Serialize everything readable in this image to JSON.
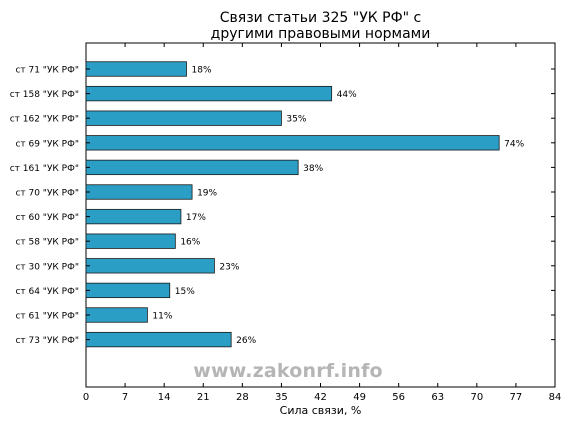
{
  "chart_data": {
    "type": "bar",
    "orientation": "horizontal",
    "title_line1": "Связи статьи 325 \"УК РФ\" с",
    "title_line2": "другими правовыми нормами",
    "xlabel": "Сила связи, %",
    "ylabel": "",
    "xlim": [
      0,
      84
    ],
    "xticks": [
      0,
      7,
      14,
      21,
      28,
      35,
      42,
      49,
      56,
      63,
      70,
      77,
      84
    ],
    "grid": false,
    "bar_color": "#2a9ec4",
    "categories": [
      "ст 71 \"УК РФ\"",
      "ст 158 \"УК РФ\"",
      "ст 162 \"УК РФ\"",
      "ст 69 \"УК РФ\"",
      "ст 161 \"УК РФ\"",
      "ст 70 \"УК РФ\"",
      "ст 60 \"УК РФ\"",
      "ст 58 \"УК РФ\"",
      "ст 30 \"УК РФ\"",
      "ст 64 \"УК РФ\"",
      "ст 61 \"УК РФ\"",
      "ст 73 \"УК РФ\""
    ],
    "values": [
      18,
      44,
      35,
      74,
      38,
      19,
      17,
      16,
      23,
      15,
      11,
      26
    ],
    "value_labels": [
      "18%",
      "44%",
      "35%",
      "74%",
      "38%",
      "19%",
      "17%",
      "16%",
      "23%",
      "15%",
      "11%",
      "26%"
    ]
  },
  "watermark": "www.zakonrf.info"
}
